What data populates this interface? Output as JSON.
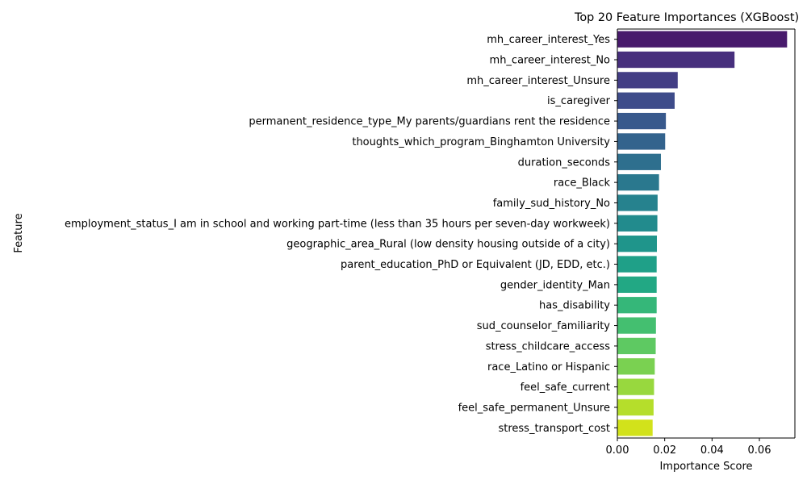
{
  "chart_data": {
    "type": "bar",
    "orientation": "horizontal",
    "title": "Top 20 Feature Importances (XGBoost)",
    "xlabel": "Importance Score",
    "ylabel": "Feature",
    "xlim": [
      0,
      0.075
    ],
    "xticks": [
      "0.00",
      "0.02",
      "0.04",
      "0.06"
    ],
    "xtick_values": [
      0,
      0.02,
      0.04,
      0.06
    ],
    "grid": false,
    "colormap": "viridis",
    "categories": [
      "mh_career_interest_Yes",
      "mh_career_interest_No",
      "mh_career_interest_Unsure",
      "is_caregiver",
      "permanent_residence_type_My parents/guardians rent the residence",
      "thoughts_which_program_Binghamton University",
      "duration_seconds",
      "race_Black",
      "family_sud_history_No",
      "employment_status_I am in school and working part-time (less than 35 hours per seven-day workweek)",
      "geographic_area_Rural (low density housing outside of a city)",
      "parent_education_PhD or Equivalent (JD, EDD, etc.)",
      "gender_identity_Man",
      "has_disability",
      "sud_counselor_familiarity",
      "stress_childcare_access",
      "race_Latino or Hispanic",
      "feel_safe_current",
      "feel_safe_permanent_Unsure",
      "stress_transport_cost"
    ],
    "values": [
      0.0717,
      0.0495,
      0.0255,
      0.0242,
      0.0205,
      0.0202,
      0.0184,
      0.0176,
      0.017,
      0.0169,
      0.0167,
      0.0166,
      0.0166,
      0.0166,
      0.0163,
      0.0162,
      0.0158,
      0.0155,
      0.0153,
      0.0149
    ],
    "colors": [
      "#481a6c",
      "#472f7d",
      "#433e85",
      "#3e4c8a",
      "#38598c",
      "#33638d",
      "#2e6f8e",
      "#2a788e",
      "#26828e",
      "#228b8d",
      "#1f958b",
      "#1fa088",
      "#22a884",
      "#35b779",
      "#44bf70",
      "#5ec962",
      "#7ad151",
      "#98d83e",
      "#b5de2b",
      "#d2e21b"
    ]
  }
}
